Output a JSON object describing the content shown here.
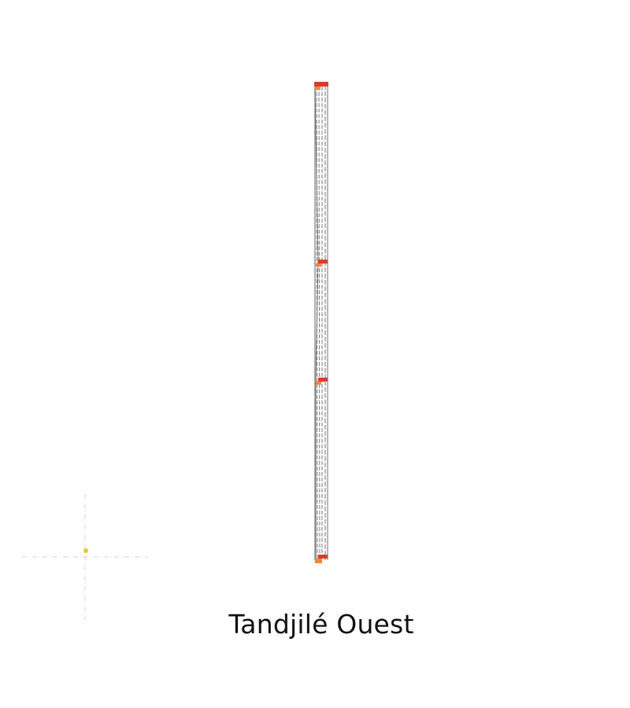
{
  "map": {
    "region_name": "Tandjilé Ouest",
    "colors": {
      "background": "#ffffff",
      "route_line": "#8a8a8a",
      "route_dashed": "#7a7a7a",
      "stop_marker": "#e03a2a",
      "stop_marker_alt": "#f08a3a",
      "locator_point": "#f5c518",
      "locator_crosshair": "#d0d0d0"
    },
    "icons": {
      "stop": "stop-marker-icon",
      "locator": "location-dot-icon"
    }
  }
}
